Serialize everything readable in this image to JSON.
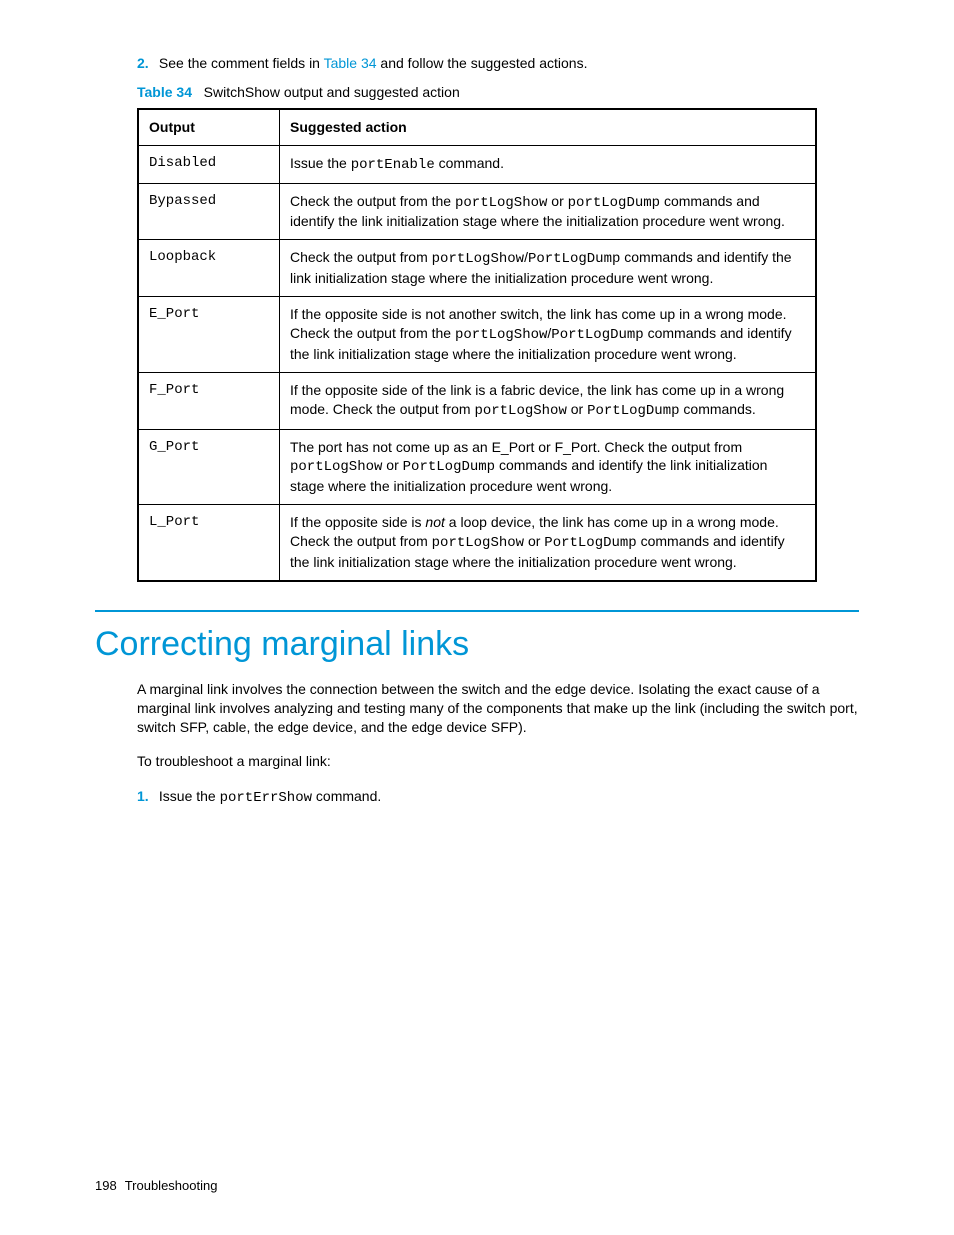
{
  "step2": {
    "number": "2.",
    "text_a": "See the comment fields in ",
    "link": "Table 34",
    "text_b": " and follow the suggested actions."
  },
  "caption": {
    "label": "Table 34",
    "title": "SwitchShow output and suggested action"
  },
  "table": {
    "headers": {
      "c1": "Output",
      "c2": "Suggested action"
    },
    "rows": {
      "r0_output": "Disabled",
      "r0_a_t1": "Issue the ",
      "r0_a_m1": "portEnable",
      "r0_a_t2": " command.",
      "r1_output": "Bypassed",
      "r1_a_t1": "Check the output from the ",
      "r1_a_m1": "portLogShow",
      "r1_a_t2": " or ",
      "r1_a_m2": "portLogDump",
      "r1_a_t3": " commands and identify the link initialization stage where the initialization procedure went wrong.",
      "r2_output": "Loopback",
      "r2_a_t1": "Check the output from ",
      "r2_a_m1": "portLogShow",
      "r2_a_t2": "/",
      "r2_a_m2": "PortLogDump",
      "r2_a_t3": " commands and identify the link initialization stage where the initialization procedure went wrong.",
      "r3_output": "E_Port",
      "r3_a_t1": "If the opposite side is not another switch, the link has come up in a wrong mode. Check the output from the ",
      "r3_a_m1": "portLogShow",
      "r3_a_t2": "/",
      "r3_a_m2": "PortLogDump",
      "r3_a_t3": " commands and identify the link initialization stage where the initialization procedure went wrong.",
      "r4_output": "F_Port",
      "r4_a_t1": "If the opposite side of the link is a fabric device, the link has come up in a wrong mode. Check the output from ",
      "r4_a_m1": "portLogShow",
      "r4_a_t2": " or ",
      "r4_a_m2": "PortLogDump",
      "r4_a_t3": " commands.",
      "r5_output": "G_Port",
      "r5_a_t1": "The port has not come up as an E_Port or F_Port. Check the output from ",
      "r5_a_m1": "portLogShow",
      "r5_a_t2": " or ",
      "r5_a_m2": "PortLogDump",
      "r5_a_t3": " commands and identify the link initialization stage where the initialization procedure went wrong.",
      "r6_output": "L_Port",
      "r6_a_t1": "If the opposite side is ",
      "r6_a_i1": "not",
      "r6_a_t2": " a loop device, the link has come up in a wrong mode. Check the output from ",
      "r6_a_m1": "portLogShow",
      "r6_a_t3": " or ",
      "r6_a_m2": "PortLogDump",
      "r6_a_t4": " commands and identify the link initialization stage where the initialization procedure went wrong."
    }
  },
  "section_heading": "Correcting marginal links",
  "para1": "A marginal link involves the connection between the switch and the edge device. Isolating the exact cause of a marginal link involves analyzing and testing many of the components that make up the link (including the switch port, switch SFP, cable, the edge device, and the edge device SFP).",
  "para2": "To troubleshoot a marginal link:",
  "step1b": {
    "number": "1.",
    "t1": "Issue the ",
    "m1": "portErrShow",
    "t2": " command."
  },
  "footer": {
    "pagenum": "198",
    "chapter": "Troubleshooting"
  }
}
